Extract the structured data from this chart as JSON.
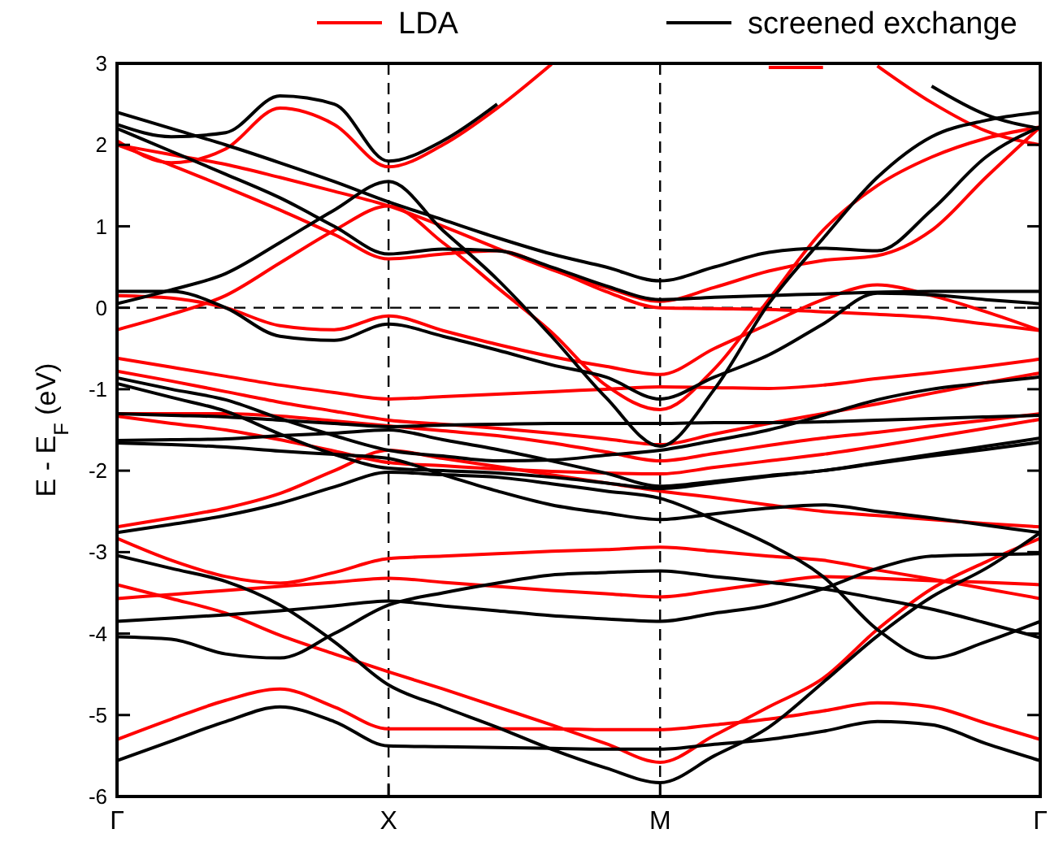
{
  "chart_data": {
    "type": "line",
    "ylabel": "E - E$_{F}$ (eV)",
    "ylim": [
      -6,
      3
    ],
    "categories": [
      "Γ",
      null,
      null,
      null,
      null,
      "X",
      null,
      null,
      null,
      null,
      "M",
      null,
      null,
      null,
      null,
      null,
      null,
      "Γ"
    ],
    "yticks": [
      -6,
      -5,
      -4,
      -3,
      -2,
      -1,
      0,
      1,
      2,
      3
    ],
    "grid": false,
    "legend": "top right",
    "marker": "none",
    "line_style": "solid",
    "ref_lines": [
      {
        "axis": "x",
        "value": "X",
        "line_style": "dashed",
        "color": "#000000"
      },
      {
        "axis": "x",
        "value": "M",
        "line_style": "dashed",
        "color": "#000000"
      },
      {
        "axis": "y",
        "value": 0,
        "line_style": "dashed",
        "color": "#000000"
      }
    ],
    "series": [
      {
        "name": "LDA",
        "color": "#ff0000",
        "values": [
          2.05,
          1.78,
          1.95,
          2.45,
          2.25,
          1.73,
          2.0,
          2.45,
          2.99,
          null,
          null,
          null,
          null,
          null,
          null,
          null,
          null,
          null
        ]
      },
      {
        "color": "#ff0000",
        "values": [
          2.0,
          1.88,
          1.76,
          1.6,
          1.43,
          1.25,
          1.0,
          0.73,
          0.47,
          0.25,
          0.08,
          0.25,
          0.45,
          0.58,
          0.64,
          0.95,
          1.6,
          2.22
        ]
      },
      {
        "color": "#ff0000",
        "values": [
          2.0,
          1.75,
          1.48,
          1.2,
          0.9,
          0.6,
          0.66,
          0.7,
          0.48,
          0.2,
          0.0,
          -0.01,
          -0.02,
          -0.05,
          -0.08,
          -0.12,
          -0.2,
          -0.28
        ]
      },
      {
        "color": "#ff0000",
        "values": [
          -0.27,
          -0.08,
          0.15,
          0.55,
          0.95,
          1.25,
          0.8,
          0.25,
          -0.3,
          -0.95,
          -1.25,
          -0.75,
          0.1,
          0.95,
          1.5,
          1.85,
          2.08,
          2.22
        ]
      },
      {
        "color": "#ff0000",
        "values": [
          0.15,
          0.12,
          0.0,
          -0.22,
          -0.27,
          -0.1,
          -0.28,
          -0.45,
          -0.6,
          -0.72,
          -0.82,
          -0.5,
          -0.2,
          0.1,
          0.28,
          0.15,
          -0.05,
          -0.28
        ]
      },
      {
        "color": "#ff0000",
        "values": [
          -0.62,
          -0.73,
          -0.84,
          -0.95,
          -1.04,
          -1.12,
          -1.09,
          -1.06,
          -1.03,
          -1.0,
          -0.97,
          -0.98,
          -0.99,
          -0.95,
          -0.87,
          -0.8,
          -0.72,
          -0.63
        ]
      },
      {
        "color": "#ff0000",
        "values": [
          -0.78,
          -0.9,
          -1.03,
          -1.16,
          -1.27,
          -1.38,
          -1.43,
          -1.48,
          -1.54,
          -1.61,
          -1.68,
          -1.55,
          -1.42,
          -1.3,
          -1.18,
          -1.05,
          -0.92,
          -0.8
        ]
      },
      {
        "color": "#ff0000",
        "values": [
          -1.3,
          -1.3,
          -1.3,
          -1.33,
          -1.39,
          -1.45,
          -1.51,
          -1.57,
          -1.66,
          -1.77,
          -1.88,
          -1.79,
          -1.69,
          -1.6,
          -1.53,
          -1.45,
          -1.38,
          -1.3
        ]
      },
      {
        "color": "#ff0000",
        "values": [
          -1.33,
          -1.42,
          -1.5,
          -1.62,
          -1.76,
          -1.9,
          -1.94,
          -1.98,
          -2.01,
          -2.03,
          -2.04,
          -1.96,
          -1.88,
          -1.8,
          -1.7,
          -1.59,
          -1.48,
          -1.37
        ]
      },
      {
        "color": "#ff0000",
        "values": [
          -2.69,
          -2.58,
          -2.46,
          -2.28,
          -2.0,
          -1.75,
          -1.85,
          -1.95,
          -2.05,
          -2.15,
          -2.25,
          -2.33,
          -2.42,
          -2.5,
          -2.55,
          -2.6,
          -2.65,
          -2.69
        ]
      },
      {
        "color": "#ff0000",
        "values": [
          -2.83,
          -3.1,
          -3.3,
          -3.38,
          -3.25,
          -3.08,
          -3.05,
          -3.02,
          -2.99,
          -2.97,
          -2.94,
          -2.99,
          -3.05,
          -3.1,
          -3.22,
          -3.33,
          -3.45,
          -3.57
        ]
      },
      {
        "color": "#ff0000",
        "values": [
          -3.57,
          -3.52,
          -3.47,
          -3.42,
          -3.37,
          -3.32,
          -3.37,
          -3.42,
          -3.47,
          -3.51,
          -3.55,
          -3.47,
          -3.38,
          -3.3,
          -3.32,
          -3.35,
          -3.37,
          -3.4
        ]
      },
      {
        "color": "#ff0000",
        "values": [
          -3.4,
          -3.57,
          -3.75,
          -4.02,
          -4.25,
          -4.47,
          -4.68,
          -4.9,
          -5.12,
          -5.35,
          -5.58,
          -5.25,
          -4.9,
          -4.55,
          -3.95,
          -3.45,
          -3.12,
          -2.83
        ]
      },
      {
        "color": "#ff0000",
        "values": [
          -5.3,
          -5.05,
          -4.82,
          -4.68,
          -4.9,
          -5.17,
          -5.17,
          -5.17,
          -5.17,
          -5.18,
          -5.18,
          -5.12,
          -5.05,
          -4.95,
          -4.85,
          -4.9,
          -5.1,
          -5.3
        ]
      },
      {
        "color": "#ff0000",
        "values": [
          null,
          null,
          null,
          null,
          null,
          null,
          null,
          null,
          null,
          null,
          null,
          null,
          2.95,
          2.95,
          null,
          null,
          null,
          null
        ]
      },
      {
        "color": "#ff0000",
        "values": [
          null,
          null,
          null,
          null,
          null,
          null,
          null,
          null,
          null,
          null,
          null,
          null,
          null,
          null,
          2.97,
          2.52,
          2.17,
          2.0
        ]
      },
      {
        "name": "screened exchange",
        "color": "#000000",
        "values": [
          2.25,
          2.1,
          2.15,
          2.6,
          2.5,
          1.8,
          2.05,
          2.5,
          null,
          null,
          null,
          null,
          null,
          null,
          null,
          null,
          null,
          null
        ]
      },
      {
        "color": "#000000",
        "values": [
          null,
          null,
          null,
          null,
          null,
          null,
          null,
          null,
          null,
          null,
          null,
          null,
          null,
          null,
          null,
          2.72,
          2.37,
          2.2
        ]
      },
      {
        "color": "#000000",
        "values": [
          2.4,
          2.2,
          2.0,
          1.78,
          1.55,
          1.3,
          1.08,
          0.86,
          0.66,
          0.5,
          0.33,
          0.5,
          0.68,
          0.73,
          0.7,
          1.2,
          1.85,
          2.22
        ]
      },
      {
        "color": "#000000",
        "values": [
          2.2,
          1.92,
          1.64,
          1.35,
          1.0,
          0.66,
          0.72,
          0.7,
          0.5,
          0.27,
          0.1,
          0.13,
          0.15,
          0.17,
          0.19,
          0.2,
          0.2,
          0.2
        ]
      },
      {
        "color": "#000000",
        "values": [
          0.05,
          0.22,
          0.42,
          0.8,
          1.2,
          1.55,
          0.95,
          0.35,
          -0.35,
          -1.1,
          -1.7,
          -1.0,
          0.05,
          0.85,
          1.6,
          2.1,
          2.3,
          2.4
        ]
      },
      {
        "color": "#000000",
        "values": [
          0.2,
          0.2,
          0.0,
          -0.35,
          -0.4,
          -0.2,
          -0.35,
          -0.52,
          -0.7,
          -0.85,
          -1.12,
          -0.85,
          -0.58,
          -0.2,
          0.18,
          0.16,
          0.1,
          0.05
        ]
      },
      {
        "color": "#000000",
        "values": [
          -0.86,
          -1.0,
          -1.13,
          -1.36,
          -1.57,
          -1.75,
          -1.82,
          -1.88,
          -1.87,
          -1.81,
          -1.75,
          -1.63,
          -1.5,
          -1.32,
          -1.13,
          -1.0,
          -0.92,
          -0.85
        ]
      },
      {
        "color": "#000000",
        "values": [
          -0.93,
          -1.1,
          -1.27,
          -1.55,
          -1.8,
          -1.97,
          -2.0,
          -2.03,
          -2.08,
          -2.15,
          -2.22,
          -2.15,
          -2.07,
          -2.0,
          -1.91,
          -1.82,
          -1.74,
          -1.65
        ]
      },
      {
        "color": "#000000",
        "values": [
          -1.3,
          -1.32,
          -1.34,
          -1.38,
          -1.42,
          -1.46,
          -1.44,
          -1.43,
          -1.42,
          -1.42,
          -1.42,
          -1.41,
          -1.41,
          -1.4,
          -1.38,
          -1.36,
          -1.34,
          -1.32
        ]
      },
      {
        "color": "#000000",
        "values": [
          -1.63,
          -1.62,
          -1.61,
          -1.57,
          -1.54,
          -1.5,
          -1.62,
          -1.74,
          -1.88,
          -2.03,
          -2.19,
          -2.13,
          -2.06,
          -2.0,
          -1.9,
          -1.8,
          -1.7,
          -1.6
        ]
      },
      {
        "color": "#000000",
        "values": [
          -1.66,
          -1.68,
          -1.71,
          -1.76,
          -1.8,
          -1.85,
          -2.05,
          -2.25,
          -2.42,
          -2.52,
          -2.6,
          -2.53,
          -2.46,
          -2.42,
          -2.5,
          -2.58,
          -2.67,
          -2.76
        ]
      },
      {
        "color": "#000000",
        "values": [
          -2.76,
          -2.66,
          -2.55,
          -2.4,
          -2.2,
          -2.02,
          -2.05,
          -2.08,
          -2.16,
          -2.25,
          -2.34,
          -2.6,
          -2.9,
          -3.3,
          -3.95,
          -4.3,
          -4.1,
          -3.85
        ]
      },
      {
        "color": "#000000",
        "values": [
          -3.85,
          -3.81,
          -3.77,
          -3.72,
          -3.66,
          -3.6,
          -3.66,
          -3.72,
          -3.78,
          -3.82,
          -3.85,
          -3.75,
          -3.65,
          -3.45,
          -3.2,
          -3.05,
          -3.03,
          -3.02
        ]
      },
      {
        "color": "#000000",
        "values": [
          -4.04,
          -4.07,
          -4.25,
          -4.3,
          -4.0,
          -3.65,
          -3.5,
          -3.38,
          -3.28,
          -3.25,
          -3.23,
          -3.3,
          -3.37,
          -3.45,
          -3.57,
          -3.7,
          -3.87,
          -4.05
        ]
      },
      {
        "color": "#000000",
        "values": [
          -3.04,
          -3.2,
          -3.36,
          -3.65,
          -4.1,
          -4.63,
          -4.9,
          -5.15,
          -5.42,
          -5.65,
          -5.83,
          -5.5,
          -5.15,
          -4.6,
          -4.03,
          -3.55,
          -3.2,
          -2.76
        ]
      },
      {
        "color": "#000000",
        "values": [
          -5.56,
          -5.32,
          -5.08,
          -4.9,
          -5.08,
          -5.38,
          -5.39,
          -5.4,
          -5.41,
          -5.42,
          -5.42,
          -5.36,
          -5.3,
          -5.2,
          -5.08,
          -5.12,
          -5.35,
          -5.56
        ]
      }
    ]
  }
}
